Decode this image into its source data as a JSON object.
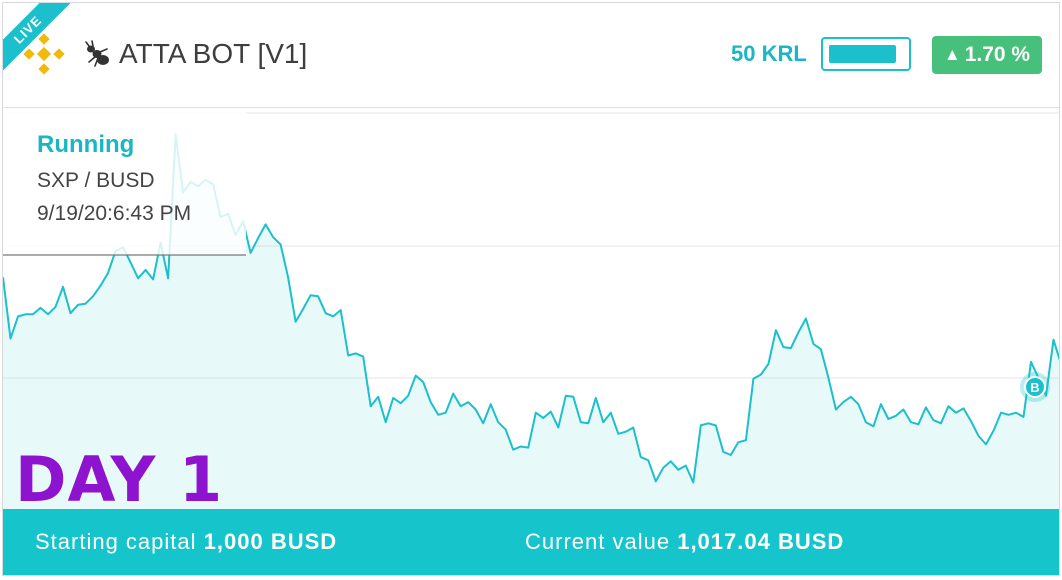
{
  "header": {
    "live_label": "LIVE",
    "bot_name": "ATTA BOT [V1]",
    "krl_label": "50 KRL",
    "krl_fill": 0.9,
    "change": "1.70 %",
    "change_direction": "up"
  },
  "info": {
    "status": "Running",
    "pair": "SXP / BUSD",
    "timestamp": "9/19/20:6:43 PM"
  },
  "day_label": "DAY 1",
  "footer": {
    "starting_label": "Starting capital",
    "starting_value": "1,000 BUSD",
    "current_label": "Current value",
    "current_value": "1,017.04 BUSD"
  },
  "marker": {
    "label": "B"
  },
  "colors": {
    "accent": "#1bc0cc",
    "positive": "#46c07a",
    "day": "#8d13cf",
    "footer": "#16c4cc"
  },
  "chart_data": {
    "type": "area",
    "series": [
      {
        "values": [
          290,
          348,
          327,
          325,
          325,
          319,
          325,
          318,
          299,
          324,
          316,
          315,
          308,
          298,
          286,
          265,
          262,
          276,
          291,
          283,
          292,
          257,
          291,
          155,
          210,
          200,
          204,
          198,
          202,
          233,
          230,
          250,
          237,
          267,
          253,
          240,
          252,
          259,
          290,
          332,
          320,
          307,
          308,
          324,
          327,
          321,
          364,
          362,
          365,
          412,
          403,
          427,
          404,
          409,
          402,
          383,
          389,
          408,
          420,
          418,
          400,
          412,
          408,
          415,
          428,
          410,
          427,
          434,
          453,
          450,
          451,
          418,
          423,
          417,
          432,
          402,
          403,
          427,
          428,
          404,
          427,
          418,
          438,
          436,
          432,
          460,
          463,
          483,
          470,
          464,
          472,
          468,
          484,
          430,
          428,
          430,
          455,
          458,
          446,
          444,
          386,
          382,
          372,
          340,
          356,
          357,
          342,
          329,
          353,
          358,
          385,
          415,
          408,
          403,
          410,
          427,
          431,
          410,
          424,
          421,
          415,
          427,
          429,
          413,
          425,
          428,
          412,
          418,
          414,
          426,
          440,
          448,
          435,
          418,
          420,
          418,
          422,
          370,
          385,
          402,
          349,
          372
        ],
        "ylim": [
          130,
          510
        ]
      }
    ]
  }
}
